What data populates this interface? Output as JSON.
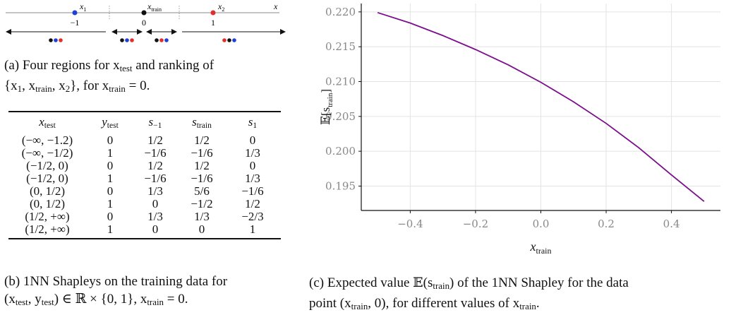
{
  "panel_a": {
    "point_labels": {
      "x1": "x",
      "x1_sub": "1",
      "xtrain": "x",
      "xtrain_sub": "train",
      "x2": "x",
      "x2_sub": "2",
      "axis": "x"
    },
    "tick_labels": [
      "−1",
      "0",
      "1"
    ],
    "colors": {
      "blue": "#1f3fd8",
      "black": "#111111",
      "red": "#e0302a"
    },
    "caption_line1": "(a) Four regions for x",
    "caption_sub1": "test",
    "caption_line1_tail": " and ranking of",
    "caption_line2": "{x",
    "caption_line2_b": "1",
    "caption_line2_c": ", x",
    "caption_line2_d": "train",
    "caption_line2_e": ", x",
    "caption_line2_f": "2",
    "caption_line2_g": "}, for x",
    "caption_line2_h": "train",
    "caption_line2_i": " = 0."
  },
  "panel_b": {
    "headers": [
      {
        "main": "x",
        "sub": "test"
      },
      {
        "main": "y",
        "sub": "test"
      },
      {
        "main": "s",
        "sub": "−1"
      },
      {
        "main": "s",
        "sub": "train"
      },
      {
        "main": "s",
        "sub": "1"
      }
    ],
    "rows": [
      [
        "(−∞, −1.2)",
        "0",
        "1/2",
        "1/2",
        "0"
      ],
      [
        "(−∞, −1/2)",
        "1",
        "−1/6",
        "−1/6",
        "1/3"
      ],
      [
        "(−1/2, 0)",
        "0",
        "1/2",
        "1/2",
        "0"
      ],
      [
        "(−1/2, 0)",
        "1",
        "−1/6",
        "−1/6",
        "1/3"
      ],
      [
        "(0, 1/2)",
        "0",
        "1/3",
        "5/6",
        "−1/6"
      ],
      [
        "(0, 1/2)",
        "1",
        "0",
        "−1/2",
        "1/2"
      ],
      [
        "(1/2, +∞)",
        "0",
        "1/3",
        "1/3",
        "−2/3"
      ],
      [
        "(1/2, +∞)",
        "1",
        "0",
        "0",
        "1"
      ]
    ],
    "caption_line1": "(b) 1NN Shapleys on the training data for",
    "caption_line2": "(x",
    "caption_line2_b": "test",
    "caption_line2_c": ", y",
    "caption_line2_d": "test",
    "caption_line2_e": ") ∈ ℝ × {0, 1},  x",
    "caption_line2_f": "train",
    "caption_line2_g": " = 0."
  },
  "chart_data": {
    "type": "line",
    "x": [
      -0.5,
      -0.4,
      -0.3,
      -0.2,
      -0.1,
      0.0,
      0.1,
      0.2,
      0.3,
      0.4,
      0.5
    ],
    "series": [
      {
        "values": [
          0.2199,
          0.2184,
          0.2166,
          0.2146,
          0.2124,
          0.2099,
          0.2071,
          0.204,
          0.2005,
          0.1966,
          0.1928
        ],
        "color": "#7b0f8c"
      }
    ],
    "title": "",
    "xlabel": "x",
    "xlabel_sub": "train",
    "ylabel": "𝔼[s",
    "ylabel_sub": "train",
    "ylabel_tail": "]",
    "xlim": [
      -0.55,
      0.55
    ],
    "ylim": [
      0.1915,
      0.2212
    ],
    "xticks": [
      -0.4,
      -0.2,
      0.0,
      0.2,
      0.4
    ],
    "xtick_labels": [
      "−0.4",
      "−0.2",
      "0.0",
      "0.2",
      "0.4"
    ],
    "yticks": [
      0.195,
      0.2,
      0.205,
      0.21,
      0.215,
      0.22
    ],
    "ytick_labels": [
      "0.195",
      "0.200",
      "0.205",
      "0.210",
      "0.215",
      "0.220"
    ],
    "grid": true
  },
  "panel_c": {
    "caption_line1": "(c) Expected value 𝔼(s",
    "caption_line1_b": "train",
    "caption_line1_c": ") of the 1NN Shapley for the data",
    "caption_line2": "point (x",
    "caption_line2_b": "train",
    "caption_line2_c": ", 0), for different values of x",
    "caption_line2_d": "train",
    "caption_line2_e": "."
  }
}
